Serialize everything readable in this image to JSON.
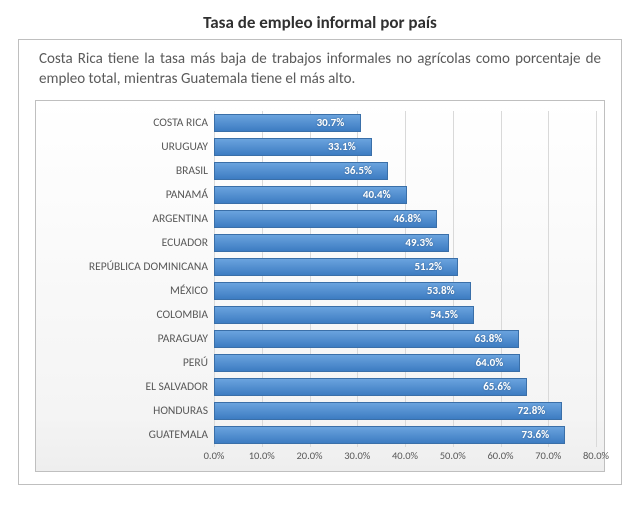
{
  "title": "Tasa de empleo informal por país",
  "description": "Costa Rica tiene la tasa más baja de trabajos informales no agrícolas como porcentaje de empleo total, mientras Guatemala tiene el más alto.",
  "chart": {
    "type": "bar-horizontal",
    "xmin": 0.0,
    "xmax": 80.0,
    "xtick_step": 10.0,
    "xtick_format_suffix": "%",
    "xtick_decimals": 1,
    "bar_color_top": "#6aa3de",
    "bar_color_bottom": "#3d7cc2",
    "bar_border_color": "#3a6fa8",
    "grid_color": "#d9d9d9",
    "panel_border_color": "#bfbfbf",
    "background_color": "#ffffff",
    "category_fontsize": 11.5,
    "datalabel_fontsize": 11,
    "datalabel_color": "#ffffff",
    "xtick_fontsize": 10.5,
    "axis_text_color": "#595959",
    "categories": [
      "COSTA RICA",
      "URUGUAY",
      "BRASIL",
      "PANAMÁ",
      "ARGENTINA",
      "ECUADOR",
      "REPÚBLICA DOMINICANA",
      "MÉXICO",
      "COLOMBIA",
      "PARAGUAY",
      "PERÚ",
      "EL SALVADOR",
      "HONDURAS",
      "GUATEMALA"
    ],
    "values": [
      30.7,
      33.1,
      36.5,
      40.4,
      46.8,
      49.3,
      51.2,
      53.8,
      54.5,
      63.8,
      64.0,
      65.6,
      72.8,
      73.6
    ],
    "value_labels": [
      "30.7%",
      "33.1%",
      "36.5%",
      "40.4%",
      "46.8%",
      "49.3%",
      "51.2%",
      "53.8%",
      "54.5%",
      "63.8%",
      "64.0%",
      "65.6%",
      "72.8%",
      "73.6%"
    ],
    "xtick_labels": [
      "0.0%",
      "10.0%",
      "20.0%",
      "30.0%",
      "40.0%",
      "50.0%",
      "60.0%",
      "70.0%",
      "80.0%"
    ]
  }
}
